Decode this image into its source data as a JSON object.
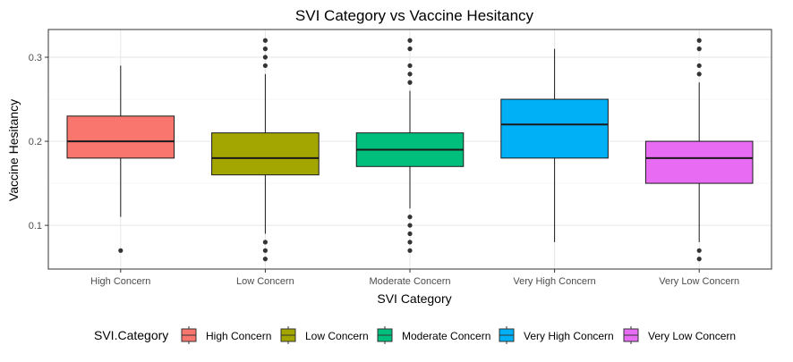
{
  "chart_data": {
    "type": "boxplot",
    "title": "SVI Category vs Vaccine Hesitancy",
    "xlabel": "SVI Category",
    "ylabel": "Vaccine Hesitancy",
    "ylim": [
      0.048,
      0.333
    ],
    "yticks": [
      0.1,
      0.2,
      0.3
    ],
    "ytick_labels": [
      "0.1",
      "0.2",
      "0.3"
    ],
    "grid": true,
    "legend": {
      "title": "SVI.Category",
      "position": "bottom"
    },
    "categories": [
      "High Concern",
      "Low Concern",
      "Moderate Concern",
      "Very High Concern",
      "Very Low Concern"
    ],
    "series": [
      {
        "name": "High Concern",
        "color": "#F8766D",
        "q1": 0.18,
        "median": 0.2,
        "q3": 0.23,
        "whisker_low": 0.11,
        "whisker_high": 0.29,
        "outliers": [
          0.07
        ]
      },
      {
        "name": "Low Concern",
        "color": "#A3A500",
        "q1": 0.16,
        "median": 0.18,
        "q3": 0.21,
        "whisker_low": 0.09,
        "whisker_high": 0.28,
        "outliers": [
          0.06,
          0.07,
          0.08,
          0.29,
          0.3,
          0.31,
          0.32
        ]
      },
      {
        "name": "Moderate Concern",
        "color": "#00BF7D",
        "q1": 0.17,
        "median": 0.19,
        "q3": 0.21,
        "whisker_low": 0.12,
        "whisker_high": 0.26,
        "outliers": [
          0.07,
          0.08,
          0.09,
          0.1,
          0.11,
          0.27,
          0.28,
          0.29,
          0.31,
          0.32
        ]
      },
      {
        "name": "Very High Concern",
        "color": "#00B0F6",
        "q1": 0.18,
        "median": 0.22,
        "q3": 0.25,
        "whisker_low": 0.08,
        "whisker_high": 0.31,
        "outliers": []
      },
      {
        "name": "Very Low Concern",
        "color": "#E76BF3",
        "q1": 0.15,
        "median": 0.18,
        "q3": 0.2,
        "whisker_low": 0.08,
        "whisker_high": 0.27,
        "outliers": [
          0.06,
          0.07,
          0.28,
          0.29,
          0.31,
          0.32
        ]
      }
    ]
  }
}
